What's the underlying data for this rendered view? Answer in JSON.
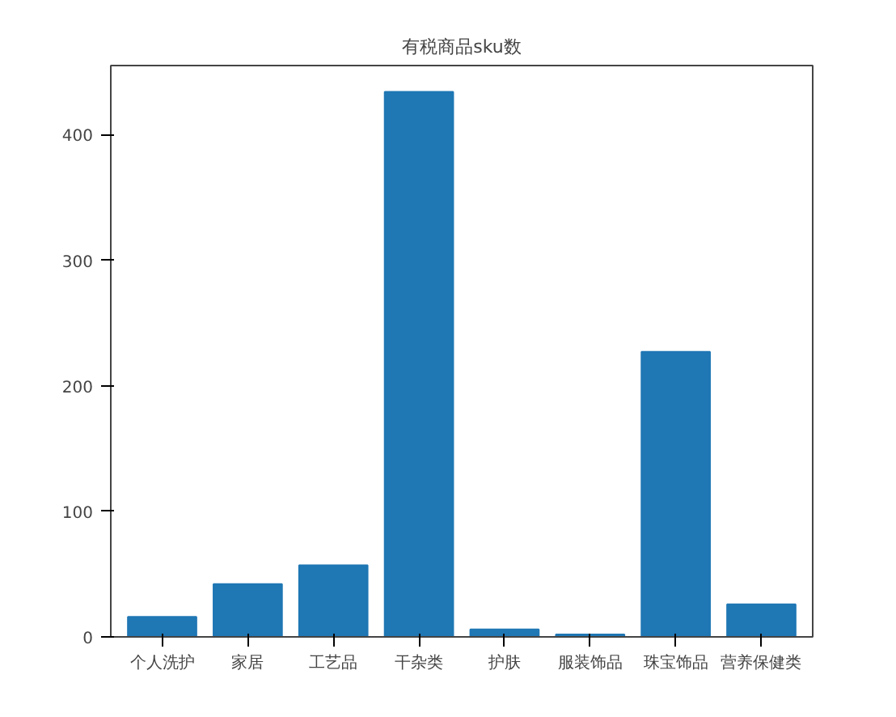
{
  "chart_data": {
    "type": "bar",
    "title": "有税商品sku数",
    "categories": [
      "个人洗护",
      "家居",
      "工艺品",
      "干杂类",
      "护肤",
      "服装饰品",
      "珠宝饰品",
      "营养保健类"
    ],
    "values": [
      16,
      42,
      57,
      434,
      6,
      2,
      227,
      26
    ],
    "color": "#1f77b4",
    "ylim": [
      0,
      455
    ],
    "yticks": [
      0,
      100,
      200,
      300,
      400
    ],
    "grid": false
  }
}
